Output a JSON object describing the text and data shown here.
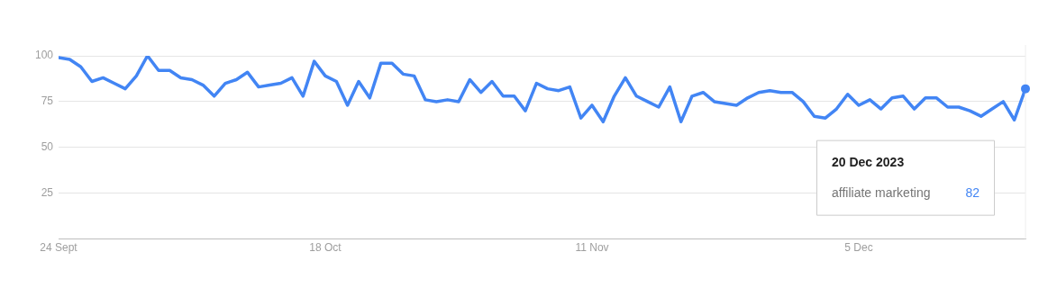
{
  "chart_data": {
    "type": "line",
    "x": [
      "2023-09-24",
      "2023-09-25",
      "2023-09-26",
      "2023-09-27",
      "2023-09-28",
      "2023-09-29",
      "2023-09-30",
      "2023-10-01",
      "2023-10-02",
      "2023-10-03",
      "2023-10-04",
      "2023-10-05",
      "2023-10-06",
      "2023-10-07",
      "2023-10-08",
      "2023-10-09",
      "2023-10-10",
      "2023-10-11",
      "2023-10-12",
      "2023-10-13",
      "2023-10-14",
      "2023-10-15",
      "2023-10-16",
      "2023-10-17",
      "2023-10-18",
      "2023-10-19",
      "2023-10-20",
      "2023-10-21",
      "2023-10-22",
      "2023-10-23",
      "2023-10-24",
      "2023-10-25",
      "2023-10-26",
      "2023-10-27",
      "2023-10-28",
      "2023-10-29",
      "2023-10-30",
      "2023-10-31",
      "2023-11-01",
      "2023-11-02",
      "2023-11-03",
      "2023-11-04",
      "2023-11-05",
      "2023-11-06",
      "2023-11-07",
      "2023-11-08",
      "2023-11-09",
      "2023-11-10",
      "2023-11-11",
      "2023-11-12",
      "2023-11-13",
      "2023-11-14",
      "2023-11-15",
      "2023-11-16",
      "2023-11-17",
      "2023-11-18",
      "2023-11-19",
      "2023-11-20",
      "2023-11-21",
      "2023-11-22",
      "2023-11-23",
      "2023-11-24",
      "2023-11-25",
      "2023-11-26",
      "2023-11-27",
      "2023-11-28",
      "2023-11-29",
      "2023-11-30",
      "2023-12-01",
      "2023-12-02",
      "2023-12-03",
      "2023-12-04",
      "2023-12-05",
      "2023-12-06",
      "2023-12-07",
      "2023-12-08",
      "2023-12-09",
      "2023-12-10",
      "2023-12-11",
      "2023-12-12",
      "2023-12-13",
      "2023-12-14",
      "2023-12-15",
      "2023-12-16",
      "2023-12-17",
      "2023-12-18",
      "2023-12-19",
      "2023-12-20"
    ],
    "series": [
      {
        "name": "affiliate marketing",
        "color": "#4285f4",
        "values": [
          99,
          98,
          94,
          86,
          88,
          85,
          82,
          89,
          100,
          92,
          92,
          88,
          87,
          84,
          78,
          85,
          87,
          91,
          83,
          84,
          85,
          88,
          78,
          97,
          89,
          86,
          73,
          86,
          77,
          96,
          96,
          90,
          89,
          76,
          75,
          76,
          75,
          87,
          80,
          86,
          78,
          78,
          70,
          85,
          82,
          81,
          83,
          66,
          73,
          64,
          78,
          88,
          78,
          75,
          72,
          83,
          64,
          78,
          80,
          75,
          74,
          73,
          77,
          80,
          81,
          80,
          80,
          75,
          67,
          66,
          71,
          79,
          73,
          76,
          71,
          77,
          78,
          71,
          77,
          77,
          72,
          72,
          70,
          67,
          71,
          75,
          65,
          82
        ],
        "value_labels": [
          null,
          null,
          null,
          null,
          null,
          null,
          null,
          null,
          null,
          null,
          null,
          null,
          null,
          null,
          null,
          null,
          null,
          null,
          null,
          null,
          null,
          null,
          null,
          null,
          null,
          null,
          null,
          null,
          null,
          null,
          null,
          null,
          null,
          null,
          null,
          null,
          null,
          null,
          null,
          null,
          null,
          null,
          null,
          null,
          null,
          null,
          null,
          null,
          null,
          null,
          null,
          null,
          null,
          null,
          null,
          null,
          null,
          null,
          null,
          null,
          null,
          null,
          null,
          null,
          null,
          null,
          null,
          null,
          null,
          null,
          null,
          null,
          null,
          null,
          null,
          null,
          null,
          null,
          null,
          null,
          null,
          null,
          null,
          null,
          null,
          null,
          null,
          null
        ]
      }
    ],
    "xlim": [
      "2023-09-24",
      "2023-12-20"
    ],
    "xticks": [
      {
        "value": "2023-09-24",
        "label": "24 Sept"
      },
      {
        "value": "2023-10-18",
        "label": "18 Oct"
      },
      {
        "value": "2023-11-11",
        "label": "11 Nov"
      },
      {
        "value": "2023-12-05",
        "label": "5 Dec"
      }
    ],
    "ylim": [
      0,
      100
    ],
    "yticks": [
      25,
      50,
      75,
      100
    ],
    "grid": "y",
    "legend": false,
    "marker": "none",
    "line_style": "solid",
    "annotations": [
      "20 Dec 2023",
      "82"
    ]
  }
}
